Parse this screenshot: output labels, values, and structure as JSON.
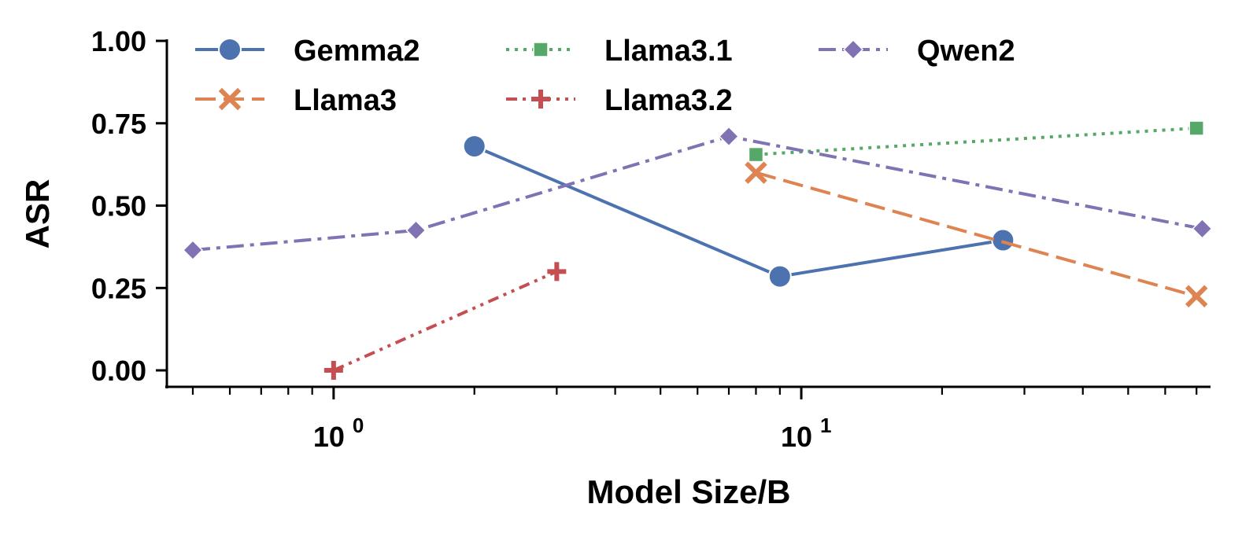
{
  "chart_data": {
    "type": "line",
    "xscale": "log",
    "xlabel": "Model Size/B",
    "ylabel": "ASR",
    "xlim": [
      0.44,
      75
    ],
    "ylim": [
      -0.05,
      1.0
    ],
    "yticks": [
      "0.00",
      "0.25",
      "0.50",
      "0.75",
      "1.00"
    ],
    "ytick_values": [
      0.0,
      0.25,
      0.5,
      0.75,
      1.0
    ],
    "xticks": [
      {
        "value": 1,
        "base": "10",
        "exp": "0"
      },
      {
        "value": 10,
        "base": "10",
        "exp": "1"
      }
    ],
    "grid": false,
    "legend_position": "top",
    "series": [
      {
        "name": "Gemma2",
        "color": "#4c72b0",
        "marker": "circle",
        "dash": "solid",
        "x": [
          2,
          9,
          27
        ],
        "y": [
          0.68,
          0.285,
          0.395
        ]
      },
      {
        "name": "Llama3",
        "color": "#dd8452",
        "marker": "x",
        "dash": "dashed",
        "x": [
          8,
          70
        ],
        "y": [
          0.6,
          0.225
        ]
      },
      {
        "name": "Llama3.1",
        "color": "#55a868",
        "marker": "square",
        "dash": "dotted",
        "x": [
          8,
          70
        ],
        "y": [
          0.655,
          0.735
        ]
      },
      {
        "name": "Llama3.2",
        "color": "#c44e52",
        "marker": "plus",
        "dash": "dashdotdot",
        "x": [
          1,
          3
        ],
        "y": [
          0.0,
          0.3
        ]
      },
      {
        "name": "Qwen2",
        "color": "#8172b3",
        "marker": "diamond",
        "dash": "dashdot",
        "x": [
          0.5,
          1.5,
          7,
          72
        ],
        "y": [
          0.365,
          0.425,
          0.71,
          0.43
        ]
      }
    ]
  }
}
